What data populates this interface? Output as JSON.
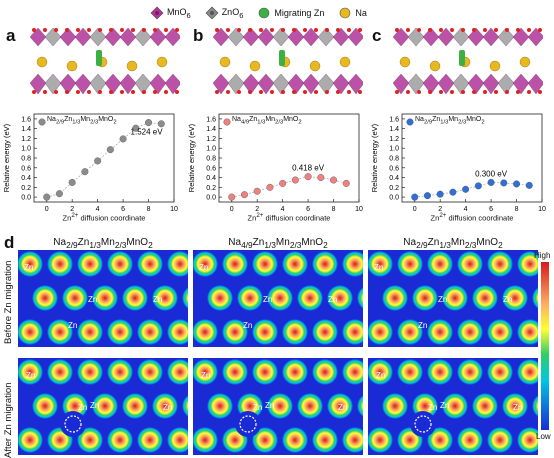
{
  "legend": {
    "items": [
      {
        "html": "MnO<sub>6</sub>",
        "icon": "mno6-octahedron-icon",
        "color": "#b0349a"
      },
      {
        "html": "ZnO<sub>6</sub>",
        "icon": "zno6-octahedron-icon",
        "color": "#8a8a8a"
      },
      {
        "html": "Migrating Zn",
        "icon": "migrating-zn-sphere-icon",
        "color": "#3cb043"
      },
      {
        "html": "Na",
        "icon": "na-sphere-icon",
        "color": "#e8b820"
      }
    ]
  },
  "panels": {
    "a": "a",
    "b": "b",
    "c": "c",
    "d": "d"
  },
  "chart_data": [
    {
      "type": "scatter",
      "panel": "a",
      "legend_html": "Na<sub>2/9</sub>Zn<sub>1/3</sub>Mn<sub>2/3</sub>MnO<sub>2</sub>",
      "x": [
        0,
        1,
        2,
        3,
        4,
        5,
        6,
        7,
        8,
        9
      ],
      "y": [
        0.0,
        0.07,
        0.3,
        0.52,
        0.74,
        0.97,
        1.19,
        1.41,
        1.524,
        1.5
      ],
      "color": "#8c8c8c",
      "annotation": "1.524 eV",
      "xlabel_html": "Zn<sup>2+</sup> diffusion coordinate",
      "ylabel": "Relative energy (eV)",
      "xlim": [
        -1,
        10
      ],
      "ylim": [
        -0.1,
        1.7
      ],
      "xticks": [
        "0",
        "2",
        "4",
        "6",
        "8",
        "10"
      ],
      "yticks": [
        "0.0",
        "0.2",
        "0.4",
        "0.6",
        "0.8",
        "1.0",
        "1.2",
        "1.4",
        "1.6"
      ]
    },
    {
      "type": "scatter",
      "panel": "b",
      "legend_html": "Na<sub>4/9</sub>Zn<sub>1/3</sub>Mn<sub>2/3</sub>MnO<sub>2</sub>",
      "x": [
        0,
        1,
        2,
        3,
        4,
        5,
        6,
        7,
        8,
        9
      ],
      "y": [
        0.0,
        0.05,
        0.12,
        0.2,
        0.28,
        0.35,
        0.418,
        0.4,
        0.35,
        0.28
      ],
      "color": "#f08080",
      "annotation": "0.418 eV",
      "xlabel_html": "Zn<sup>2+</sup> diffusion coordinate",
      "ylabel": "Relative energy (eV)",
      "xlim": [
        -1,
        10
      ],
      "ylim": [
        -0.1,
        1.7
      ],
      "xticks": [
        "0",
        "2",
        "4",
        "6",
        "8",
        "10"
      ],
      "yticks": [
        "0.0",
        "0.2",
        "0.4",
        "0.6",
        "0.8",
        "1.0",
        "1.2",
        "1.4",
        "1.6"
      ]
    },
    {
      "type": "scatter",
      "panel": "c",
      "legend_html": "Na<sub>2/9</sub>Zn<sub>1/3</sub>Mn<sub>2/3</sub>MnO<sub>2</sub>",
      "x": [
        0,
        1,
        2,
        3,
        4,
        5,
        6,
        7,
        8,
        9
      ],
      "y": [
        0.0,
        0.03,
        0.06,
        0.1,
        0.16,
        0.23,
        0.3,
        0.29,
        0.27,
        0.24
      ],
      "color": "#2f6fd6",
      "annotation": "0.300 eV",
      "xlabel_html": "Zn<sup>2+</sup> diffusion coordinate",
      "ylabel": "Relative energy (eV)",
      "xlim": [
        -1,
        10
      ],
      "ylim": [
        -0.1,
        1.7
      ],
      "xticks": [
        "0",
        "2",
        "4",
        "6",
        "8",
        "10"
      ],
      "yticks": [
        "0.0",
        "0.2",
        "0.4",
        "0.6",
        "0.8",
        "1.0",
        "1.2",
        "1.4",
        "1.6"
      ]
    }
  ],
  "maps": {
    "titles_html": [
      "Na<sub>2/9</sub>Zn<sub>1/3</sub>Mn<sub>2/3</sub>MnO<sub>2</sub>",
      "Na<sub>4/9</sub>Zn<sub>1/3</sub>Mn<sub>2/3</sub>MnO<sub>2</sub>",
      "Na<sub>2/9</sub>Zn<sub>1/3</sub>Mn<sub>2/3</sub>MnO<sub>2</sub>"
    ],
    "row_labels": [
      "Before Zn migration",
      "After Zn migration"
    ],
    "zn_label": "Zn",
    "colorbar": {
      "high": "High",
      "low": "Low"
    }
  }
}
